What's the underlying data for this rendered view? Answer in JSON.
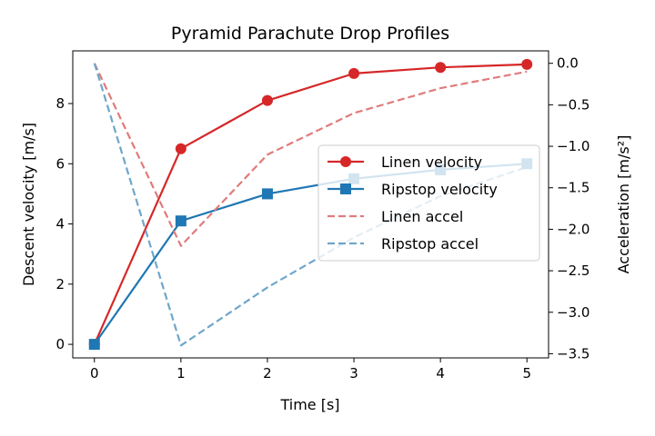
{
  "chart_data": {
    "type": "line",
    "title": "Pyramid Parachute Drop Profiles",
    "xlabel": "Time [s]",
    "ylabel": "Descent velocity [m/s]",
    "y2label": "Acceleration [m/s²]",
    "x": [
      0,
      1,
      2,
      3,
      4,
      5
    ],
    "xlim": [
      -0.25,
      5.25
    ],
    "ylim": [
      -0.45,
      9.75
    ],
    "y2lim": [
      -3.55,
      0.15
    ],
    "xticks": [
      0,
      1,
      2,
      3,
      4,
      5
    ],
    "yticks": [
      0,
      2,
      4,
      6,
      8
    ],
    "y2ticks": [
      0.0,
      -0.5,
      -1.0,
      -1.5,
      -2.0,
      -2.5,
      -3.0,
      -3.5
    ],
    "y2tick_labels": [
      "0.0",
      "−0.5",
      "−1.0",
      "−1.5",
      "−2.0",
      "−2.5",
      "−3.0",
      "−3.5"
    ],
    "grid": false,
    "legend_position": "center-right",
    "series": [
      {
        "name": "Linen velocity",
        "axis": "left",
        "style": "solid-circle",
        "color": "#d62728",
        "values": [
          0,
          6.5,
          8.1,
          9.0,
          9.2,
          9.3
        ]
      },
      {
        "name": "Ripstop velocity",
        "axis": "left",
        "style": "solid-square",
        "color": "#1f77b4",
        "values": [
          0,
          4.1,
          5.0,
          5.5,
          5.8,
          6.0
        ]
      },
      {
        "name": "Linen accel",
        "axis": "right",
        "style": "dashed",
        "color": "#e07b7c",
        "values": [
          0.0,
          -2.2,
          -1.1,
          -0.6,
          -0.3,
          -0.1
        ]
      },
      {
        "name": "Ripstop accel",
        "axis": "right",
        "style": "dashed",
        "color": "#6fa6cb",
        "values": [
          0.0,
          -3.4,
          -2.7,
          -2.1,
          -1.6,
          -1.25
        ]
      }
    ]
  }
}
